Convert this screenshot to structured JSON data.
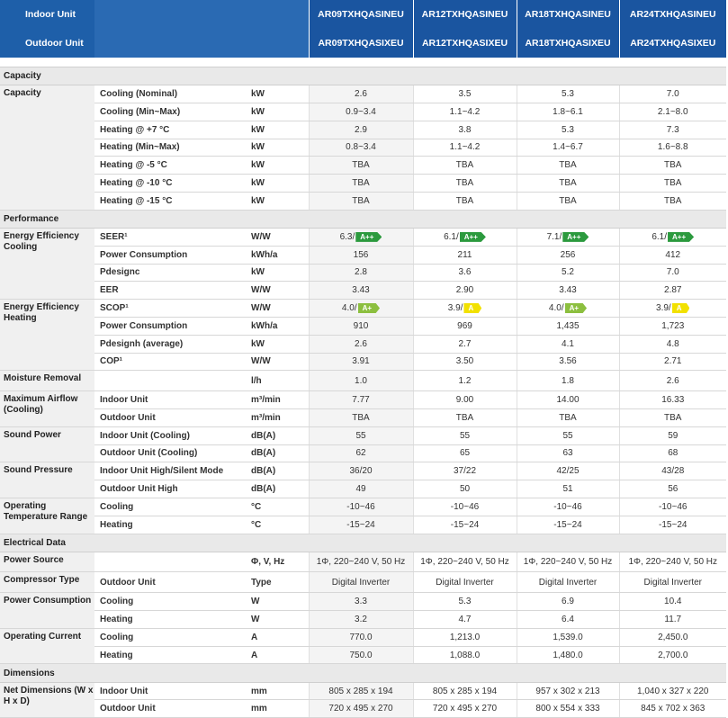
{
  "header": {
    "indoor_label": "Indoor Unit",
    "outdoor_label": "Outdoor Unit",
    "indoor_models": [
      "AR09TXHQASINEU",
      "AR12TXHQASINEU",
      "AR18TXHQASINEU",
      "AR24TXHQASINEU"
    ],
    "outdoor_models": [
      "AR09TXHQASIXEU",
      "AR12TXHQASIXEU",
      "AR18TXHQASIXEU",
      "AR24TXHQASIXEU"
    ]
  },
  "badge_colors": {
    "A++": "#2c9a3e",
    "A+": "#8cbf3f",
    "A": "#f2e100"
  },
  "sections": [
    {
      "title": "Capacity",
      "groups": [
        {
          "label": "Capacity",
          "rows": [
            {
              "label": "Cooling (Nominal)",
              "unit": "kW",
              "values": [
                "2.6",
                "3.5",
                "5.3",
                "7.0"
              ]
            },
            {
              "label": "Cooling (Min~Max)",
              "unit": "kW",
              "values": [
                "0.9~3.4",
                "1.1~4.2",
                "1.8~6.1",
                "2.1~8.0"
              ]
            },
            {
              "label": "Heating @ +7 °C",
              "unit": "kW",
              "values": [
                "2.9",
                "3.8",
                "5.3",
                "7.3"
              ]
            },
            {
              "label": "Heating (Min~Max)",
              "unit": "kW",
              "values": [
                "0.8~3.4",
                "1.1~4.2",
                "1.4~6.7",
                "1.6~8.8"
              ]
            },
            {
              "label": "Heating @ -5 °C",
              "unit": "kW",
              "values": [
                "TBA",
                "TBA",
                "TBA",
                "TBA"
              ]
            },
            {
              "label": "Heating @ -10 °C",
              "unit": "kW",
              "values": [
                "TBA",
                "TBA",
                "TBA",
                "TBA"
              ]
            },
            {
              "label": "Heating @ -15 °C",
              "unit": "kW",
              "values": [
                "TBA",
                "TBA",
                "TBA",
                "TBA"
              ]
            }
          ]
        }
      ]
    },
    {
      "title": "Performance",
      "groups": [
        {
          "label": "Energy Efficiency Cooling",
          "rows": [
            {
              "label": "SEER¹",
              "unit": "W/W",
              "values": [
                "6.3/",
                "6.1/",
                "7.1/",
                "6.1/"
              ],
              "badges": [
                "A++",
                "A++",
                "A++",
                "A++"
              ]
            },
            {
              "label": "Power Consumption",
              "unit": "kWh/a",
              "values": [
                "156",
                "211",
                "256",
                "412"
              ]
            },
            {
              "label": "Pdesignc",
              "unit": "kW",
              "values": [
                "2.8",
                "3.6",
                "5.2",
                "7.0"
              ]
            },
            {
              "label": "EER",
              "unit": "W/W",
              "values": [
                "3.43",
                "2.90",
                "3.43",
                "2.87"
              ]
            }
          ]
        },
        {
          "label": "Energy Efficiency Heating",
          "rows": [
            {
              "label": "SCOP¹",
              "unit": "W/W",
              "values": [
                "4.0/",
                "3.9/",
                "4.0/",
                "3.9/"
              ],
              "badges": [
                "A+",
                "A",
                "A+",
                "A"
              ]
            },
            {
              "label": "Power Consumption",
              "unit": "kWh/a",
              "values": [
                "910",
                "969",
                "1,435",
                "1,723"
              ]
            },
            {
              "label": "Pdesignh (average)",
              "unit": "kW",
              "values": [
                "2.6",
                "2.7",
                "4.1",
                "4.8"
              ]
            },
            {
              "label": "COP¹",
              "unit": "W/W",
              "values": [
                "3.91",
                "3.50",
                "3.56",
                "2.71"
              ]
            }
          ]
        },
        {
          "label": "Moisture Removal",
          "rows": [
            {
              "label": "",
              "unit": "l/h",
              "values": [
                "1.0",
                "1.2",
                "1.8",
                "2.6"
              ]
            }
          ]
        },
        {
          "label": "Maximum Airflow (Cooling)",
          "rows": [
            {
              "label": "Indoor Unit",
              "unit": "m³/min",
              "values": [
                "7.77",
                "9.00",
                "14.00",
                "16.33"
              ]
            },
            {
              "label": "Outdoor Unit",
              "unit": "m³/min",
              "values": [
                "TBA",
                "TBA",
                "TBA",
                "TBA"
              ]
            }
          ]
        },
        {
          "label": "Sound Power",
          "rows": [
            {
              "label": "Indoor Unit (Cooling)",
              "unit": "dB(A)",
              "values": [
                "55",
                "55",
                "55",
                "59"
              ]
            },
            {
              "label": "Outdoor Unit (Cooling)",
              "unit": "dB(A)",
              "values": [
                "62",
                "65",
                "63",
                "68"
              ]
            }
          ]
        },
        {
          "label": "Sound Pressure",
          "rows": [
            {
              "label": "Indoor Unit High/Silent Mode",
              "unit": "dB(A)",
              "values": [
                "36/20",
                "37/22",
                "42/25",
                "43/28"
              ]
            },
            {
              "label": "Outdoor Unit High",
              "unit": "dB(A)",
              "values": [
                "49",
                "50",
                "51",
                "56"
              ]
            }
          ]
        },
        {
          "label": "Operating Temperature Range",
          "rows": [
            {
              "label": "Cooling",
              "unit": "°C",
              "values": [
                "-10~46",
                "-10~46",
                "-10~46",
                "-10~46"
              ]
            },
            {
              "label": "Heating",
              "unit": "°C",
              "values": [
                "-15~24",
                "-15~24",
                "-15~24",
                "-15~24"
              ]
            }
          ]
        }
      ]
    },
    {
      "title": "Electrical Data",
      "groups": [
        {
          "label": "Power Source",
          "rows": [
            {
              "label": "",
              "unit": "Φ, V, Hz",
              "values": [
                "1Φ, 220~240 V, 50 Hz",
                "1Φ, 220~240 V, 50 Hz",
                "1Φ, 220~240 V, 50 Hz",
                "1Φ, 220~240 V, 50 Hz"
              ]
            }
          ]
        },
        {
          "label": "Compressor Type",
          "rows": [
            {
              "label": "Outdoor Unit",
              "unit": "Type",
              "values": [
                "Digital Inverter",
                "Digital Inverter",
                "Digital Inverter",
                "Digital Inverter"
              ]
            }
          ]
        },
        {
          "label": "Power Consumption",
          "rows": [
            {
              "label": "Cooling",
              "unit": "W",
              "values": [
                "3.3",
                "5.3",
                "6.9",
                "10.4"
              ]
            },
            {
              "label": "Heating",
              "unit": "W",
              "values": [
                "3.2",
                "4.7",
                "6.4",
                "11.7"
              ]
            }
          ]
        },
        {
          "label": "Operating Current",
          "rows": [
            {
              "label": "Cooling",
              "unit": "A",
              "values": [
                "770.0",
                "1,213.0",
                "1,539.0",
                "2,450.0"
              ]
            },
            {
              "label": "Heating",
              "unit": "A",
              "values": [
                "750.0",
                "1,088.0",
                "1,480.0",
                "2,700.0"
              ]
            }
          ]
        }
      ]
    },
    {
      "title": "Dimensions",
      "groups": [
        {
          "label": "Net Dimensions (W x H x D)",
          "rows": [
            {
              "label": "Indoor Unit",
              "unit": "mm",
              "values": [
                "805 x 285 x 194",
                "805 x 285 x 194",
                "957 x 302 x 213",
                "1,040 x 327 x 220"
              ]
            },
            {
              "label": "Outdoor Unit",
              "unit": "mm",
              "values": [
                "720 x 495 x 270",
                "720 x 495 x 270",
                "800 x 554 x 333",
                "845 x 702 x 363"
              ]
            }
          ]
        }
      ]
    }
  ]
}
